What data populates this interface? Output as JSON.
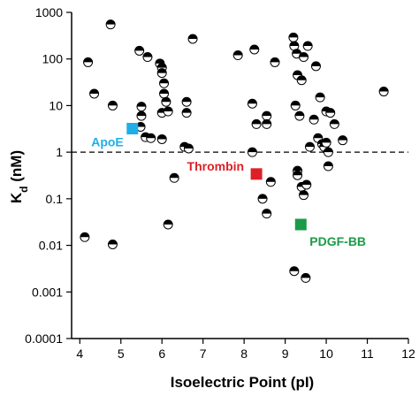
{
  "chart_data": {
    "type": "scatter",
    "xlabel": "Isoelectric Point (pI)",
    "ylabel_main": "K",
    "ylabel_sub": "d",
    "ylabel_unit": " (nM)",
    "xlim": [
      3.8,
      12
    ],
    "x_ticks": [
      4,
      5,
      6,
      7,
      8,
      9,
      10,
      11,
      12
    ],
    "x_tick_labels": [
      "4",
      "5",
      "6",
      "7",
      "8",
      "9",
      "10",
      "11",
      "12"
    ],
    "yscale": "log",
    "ylim": [
      0.0001,
      1000
    ],
    "y_ticks": [
      0.0001,
      0.001,
      0.01,
      0.1,
      1,
      10,
      100,
      1000
    ],
    "y_tick_labels": [
      "0.0001",
      "0.001",
      "0.01",
      "0.1",
      "1",
      "10",
      "100",
      "1000"
    ],
    "reference_line": {
      "y": 1,
      "style": "dashed",
      "color": "#000000"
    },
    "grid": false,
    "series": [
      {
        "marker": "half-filled circle",
        "points": [
          [
            4.75,
            550
          ],
          [
            4.2,
            85
          ],
          [
            4.35,
            18
          ],
          [
            4.8,
            10
          ],
          [
            4.12,
            0.015
          ],
          [
            4.8,
            0.0105
          ],
          [
            5.45,
            150
          ],
          [
            5.65,
            110
          ],
          [
            5.5,
            9.5
          ],
          [
            5.5,
            6
          ],
          [
            5.48,
            3.5
          ],
          [
            5.6,
            2.1
          ],
          [
            5.73,
            2.0
          ],
          [
            5.95,
            80
          ],
          [
            6.0,
            65
          ],
          [
            6.0,
            50
          ],
          [
            6.05,
            30
          ],
          [
            6.05,
            18
          ],
          [
            6.1,
            12
          ],
          [
            6.0,
            7
          ],
          [
            6.15,
            7.5
          ],
          [
            6.0,
            1.9
          ],
          [
            6.15,
            0.028
          ],
          [
            6.3,
            0.28
          ],
          [
            6.55,
            1.3
          ],
          [
            6.6,
            7
          ],
          [
            6.6,
            12
          ],
          [
            6.65,
            1.2
          ],
          [
            6.75,
            270
          ],
          [
            7.85,
            120
          ],
          [
            8.2,
            11
          ],
          [
            8.2,
            1.0
          ],
          [
            8.25,
            160
          ],
          [
            8.3,
            4
          ],
          [
            8.45,
            0.1
          ],
          [
            8.55,
            0.048
          ],
          [
            8.55,
            6
          ],
          [
            8.55,
            4
          ],
          [
            8.65,
            0.23
          ],
          [
            8.75,
            85
          ],
          [
            9.2,
            290
          ],
          [
            9.22,
            0.0028
          ],
          [
            9.22,
            190
          ],
          [
            9.28,
            130
          ],
          [
            9.3,
            45
          ],
          [
            9.25,
            10
          ],
          [
            9.3,
            0.4
          ],
          [
            9.3,
            0.32
          ],
          [
            9.35,
            6
          ],
          [
            9.4,
            35
          ],
          [
            9.45,
            110
          ],
          [
            9.4,
            0.18
          ],
          [
            9.45,
            0.12
          ],
          [
            9.5,
            0.002
          ],
          [
            9.55,
            190
          ],
          [
            9.52,
            0.2
          ],
          [
            9.6,
            1.3
          ],
          [
            9.7,
            5
          ],
          [
            9.75,
            70
          ],
          [
            9.8,
            2.0
          ],
          [
            9.85,
            15
          ],
          [
            9.9,
            1.5
          ],
          [
            9.95,
            1.3
          ],
          [
            10.05,
            1.0
          ],
          [
            10.0,
            1.6
          ],
          [
            10.05,
            0.5
          ],
          [
            10.0,
            7.5
          ],
          [
            10.1,
            7
          ],
          [
            10.2,
            4
          ],
          [
            10.4,
            1.8
          ],
          [
            11.4,
            20
          ]
        ]
      }
    ],
    "highlights": [
      {
        "name": "ApoE",
        "x": 5.28,
        "y": 3.2,
        "color": "#1eaee8"
      },
      {
        "name": "Thrombin",
        "x": 8.3,
        "y": 0.34,
        "color": "#dd2027"
      },
      {
        "name": "PDGF-BB",
        "x": 9.38,
        "y": 0.028,
        "color": "#1a9b48"
      }
    ]
  }
}
